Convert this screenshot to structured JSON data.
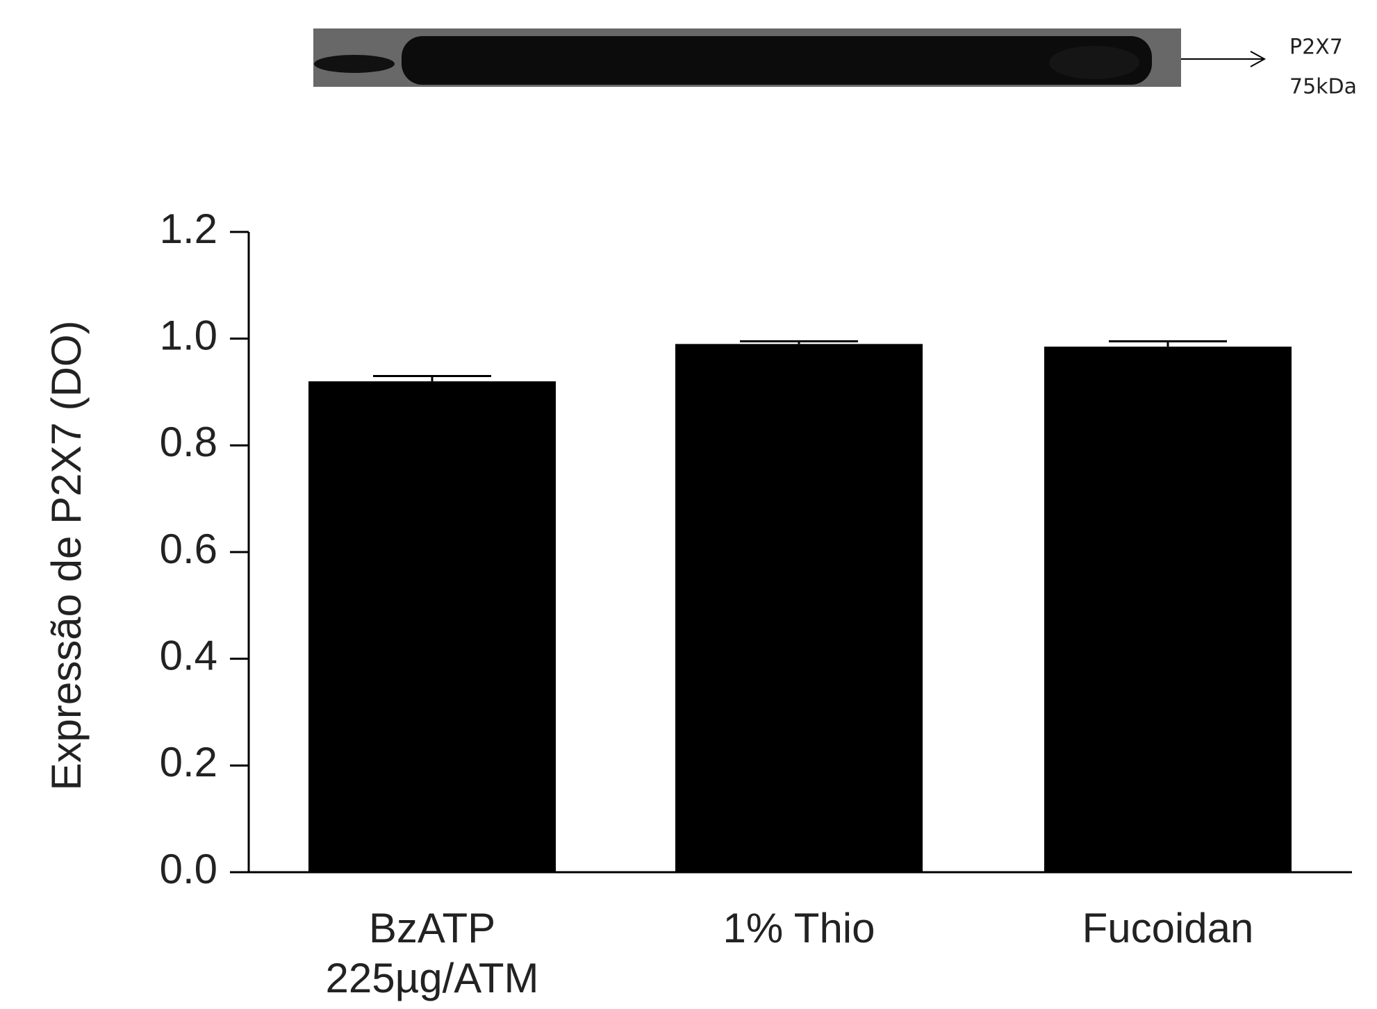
{
  "blot": {
    "labels": [
      "P2X7",
      "75kDa"
    ]
  },
  "chart_data": {
    "type": "bar",
    "y_label": "Expressão de P2X7 (DO)",
    "categories": [
      "BzATP 225µg/ATM",
      "1% Thio",
      "Fucoidan"
    ],
    "values": [
      0.92,
      0.99,
      0.985
    ],
    "errors": [
      0.01,
      0.005,
      0.01
    ],
    "color": "#000000",
    "ylim": [
      0,
      1.2
    ],
    "yticks": [
      {
        "value": 0,
        "label": "0.0"
      },
      {
        "value": 0.2,
        "label": "0.2"
      },
      {
        "value": 0.4,
        "label": "0.4"
      },
      {
        "value": 0.6,
        "label": "0.6"
      },
      {
        "value": 0.8,
        "label": "0.8"
      },
      {
        "value": 1,
        "label": "1.0"
      },
      {
        "value": 1.2,
        "label": "1.2"
      }
    ],
    "grid": false
  }
}
